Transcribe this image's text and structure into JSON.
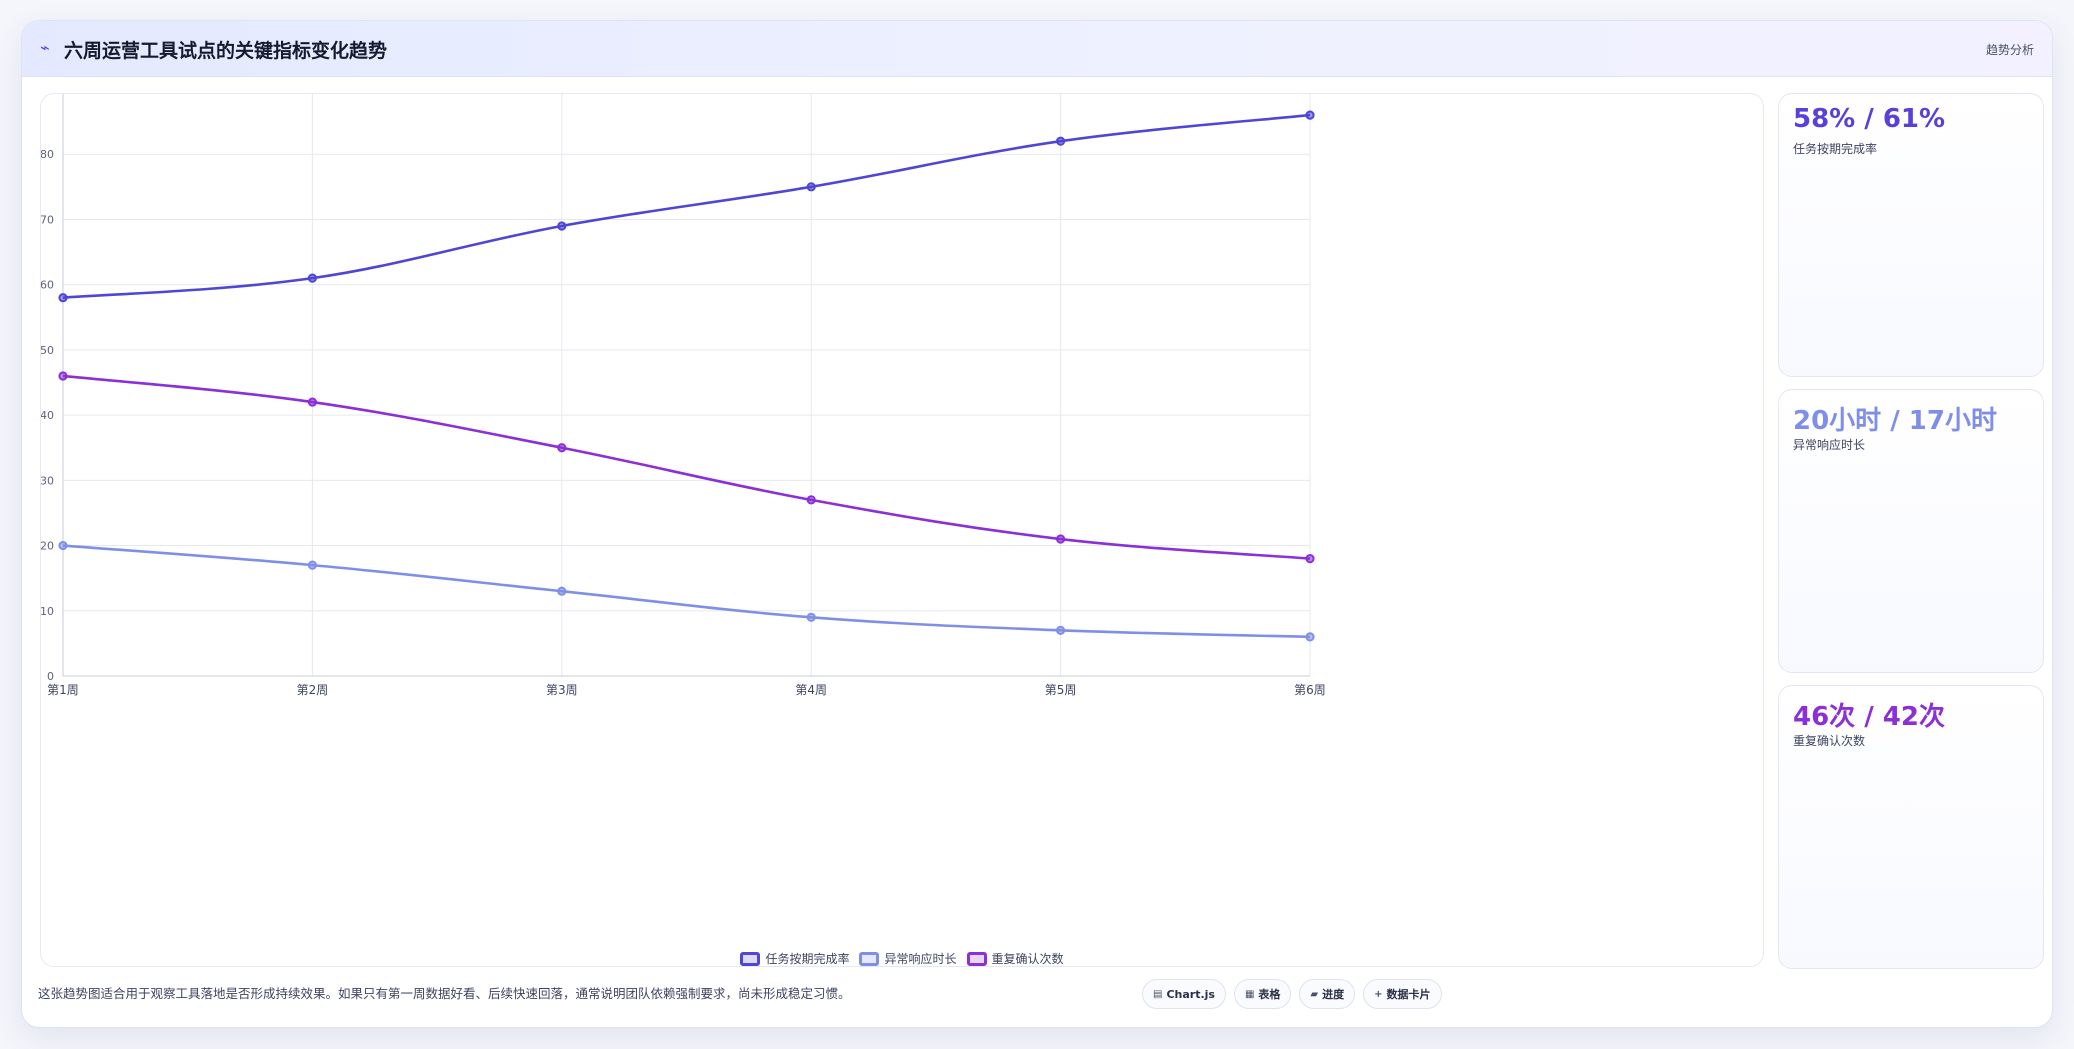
{
  "header": {
    "title": "六周运营工具试点的关键指标变化趋势",
    "tag": "趋势分析",
    "icon": "sparkline-icon"
  },
  "chart_data": {
    "type": "line",
    "categories": [
      "第1周",
      "第2周",
      "第3周",
      "第4周",
      "第5周",
      "第6周"
    ],
    "ylim": [
      0,
      90
    ],
    "yticks": [
      0,
      10,
      20,
      30,
      40,
      50,
      60,
      70,
      80,
      90
    ],
    "grid": true,
    "legend_position": "bottom",
    "series": [
      {
        "name": "任务按期完成率",
        "color": "#4f46d5",
        "values": [
          58,
          61,
          69,
          75,
          82,
          86
        ]
      },
      {
        "name": "异常响应时长",
        "color": "#7f8fe8",
        "values": [
          20,
          17,
          13,
          9,
          7,
          6
        ]
      },
      {
        "name": "重复确认次数",
        "color": "#8b2fd6",
        "values": [
          46,
          42,
          35,
          27,
          21,
          18
        ]
      }
    ]
  },
  "stats": [
    {
      "value": "58% / 61%",
      "label": "任务按期完成率",
      "color": "#5a3fd8"
    },
    {
      "value": "20小时 / 17小时",
      "label": "异常响应时长",
      "color": "#7f8fe8"
    },
    {
      "value": "46次 / 42次",
      "label": "重复确认次数",
      "color": "#8b2fd6"
    }
  ],
  "note": "这张趋势图适合用于观察工具落地是否形成持续效果。如果只有第一周数据好看、后续快速回落，通常说明团队依赖强制要求，尚未形成稳定习惯。",
  "chips": [
    {
      "icon": "chart-icon",
      "glyph": "▤",
      "label": "Chart.js"
    },
    {
      "icon": "table-icon",
      "glyph": "▦",
      "label": "表格"
    },
    {
      "icon": "progress-icon",
      "glyph": "▰",
      "label": "进度"
    },
    {
      "icon": "plus-icon",
      "glyph": "+",
      "label": "数据卡片"
    }
  ]
}
